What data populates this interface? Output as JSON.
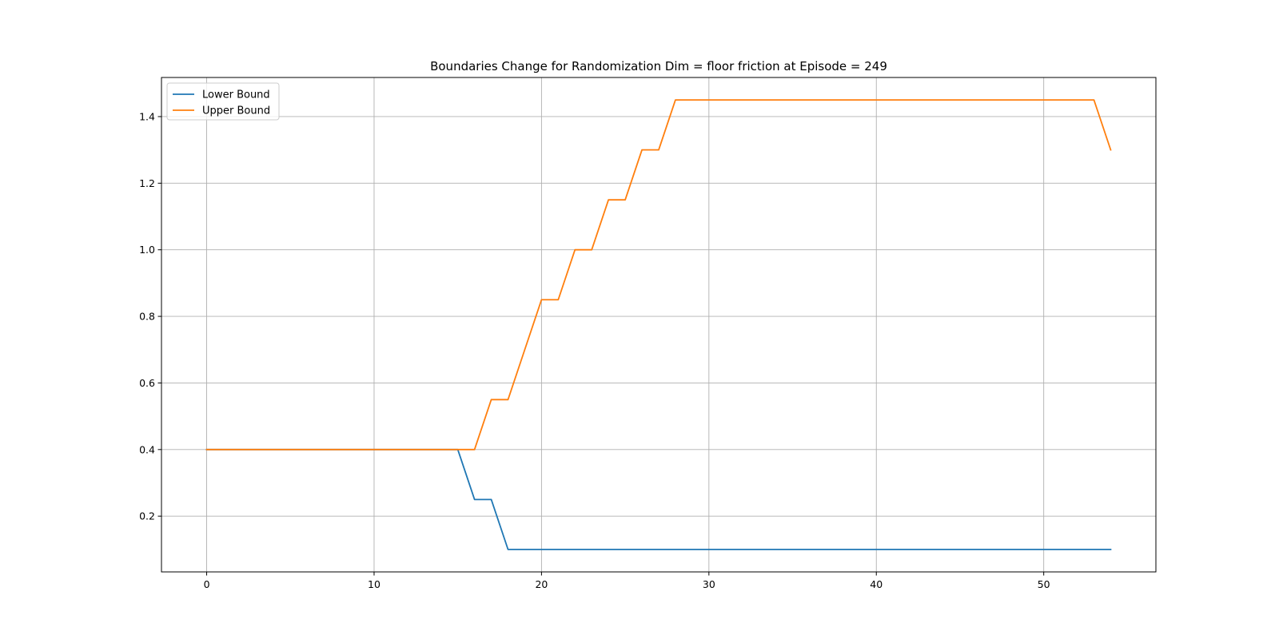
{
  "chart_data": {
    "type": "line",
    "title": "Boundaries Change for Randomization Dim = floor friction at Episode = 249",
    "xlabel": "",
    "ylabel": "",
    "xlim": [
      -2.7,
      56.7
    ],
    "ylim": [
      0.0325,
      1.5175
    ],
    "x_ticks": [
      0,
      10,
      20,
      30,
      40,
      50
    ],
    "y_ticks": [
      0.2,
      0.4,
      0.6,
      0.8,
      1.0,
      1.2,
      1.4
    ],
    "grid": true,
    "legend_position": "top-left",
    "x": [
      0,
      1,
      2,
      3,
      4,
      5,
      6,
      7,
      8,
      9,
      10,
      11,
      12,
      13,
      14,
      15,
      16,
      17,
      18,
      19,
      20,
      21,
      22,
      23,
      24,
      25,
      26,
      27,
      28,
      29,
      30,
      31,
      32,
      33,
      34,
      35,
      36,
      37,
      38,
      39,
      40,
      41,
      42,
      43,
      44,
      45,
      46,
      47,
      48,
      49,
      50,
      51,
      52,
      53,
      54
    ],
    "series": [
      {
        "name": "Lower Bound",
        "color": "#1f77b4",
        "values": [
          0.4,
          0.4,
          0.4,
          0.4,
          0.4,
          0.4,
          0.4,
          0.4,
          0.4,
          0.4,
          0.4,
          0.4,
          0.4,
          0.4,
          0.4,
          0.4,
          0.25,
          0.25,
          0.1,
          0.1,
          0.1,
          0.1,
          0.1,
          0.1,
          0.1,
          0.1,
          0.1,
          0.1,
          0.1,
          0.1,
          0.1,
          0.1,
          0.1,
          0.1,
          0.1,
          0.1,
          0.1,
          0.1,
          0.1,
          0.1,
          0.1,
          0.1,
          0.1,
          0.1,
          0.1,
          0.1,
          0.1,
          0.1,
          0.1,
          0.1,
          0.1,
          0.1,
          0.1,
          0.1,
          0.1
        ]
      },
      {
        "name": "Upper Bound",
        "color": "#ff7f0e",
        "values": [
          0.4,
          0.4,
          0.4,
          0.4,
          0.4,
          0.4,
          0.4,
          0.4,
          0.4,
          0.4,
          0.4,
          0.4,
          0.4,
          0.4,
          0.4,
          0.4,
          0.4,
          0.55,
          0.55,
          0.7,
          0.85,
          0.85,
          1.0,
          1.0,
          1.15,
          1.15,
          1.3,
          1.3,
          1.45,
          1.45,
          1.45,
          1.45,
          1.45,
          1.45,
          1.45,
          1.45,
          1.45,
          1.45,
          1.45,
          1.45,
          1.45,
          1.45,
          1.45,
          1.45,
          1.45,
          1.45,
          1.45,
          1.45,
          1.45,
          1.45,
          1.45,
          1.45,
          1.45,
          1.45,
          1.3
        ]
      }
    ]
  }
}
